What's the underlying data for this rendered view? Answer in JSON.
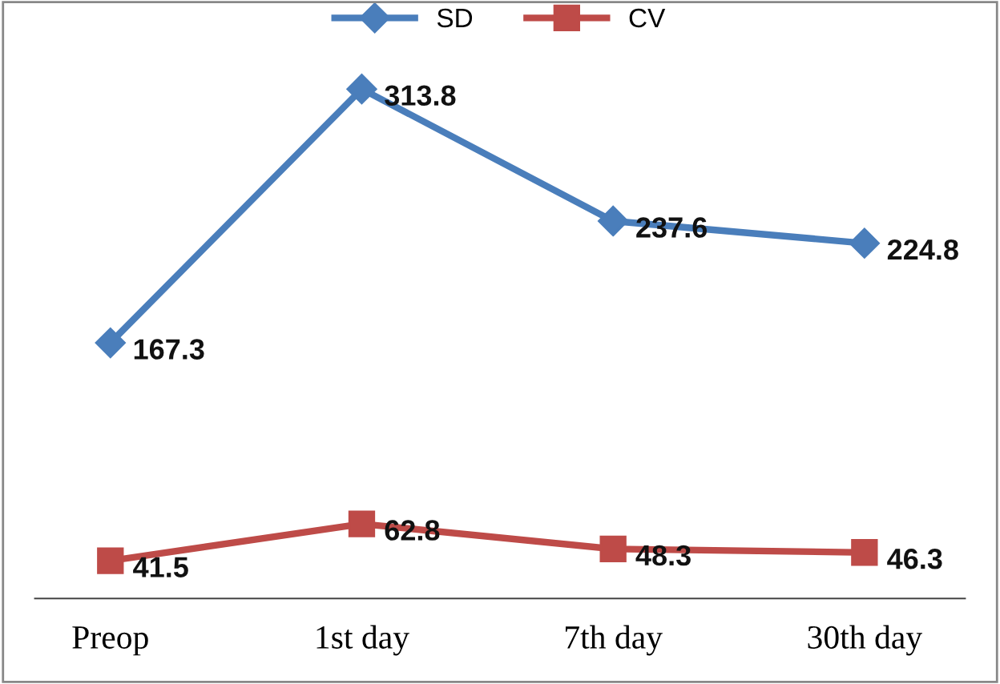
{
  "chart_data": {
    "type": "line",
    "categories": [
      "Preop",
      "1st day",
      "7th day",
      "30th day"
    ],
    "series": [
      {
        "name": "SD",
        "color": "#4a7ebb",
        "marker": "diamond",
        "values": [
          167.3,
          313.8,
          237.6,
          224.8
        ]
      },
      {
        "name": "CV",
        "color": "#be4b48",
        "marker": "square",
        "values": [
          41.5,
          62.8,
          48.3,
          46.3
        ]
      }
    ],
    "data_labels": true,
    "legend": "top",
    "grid": false,
    "tick_labels": "x",
    "line_style": "solid"
  }
}
